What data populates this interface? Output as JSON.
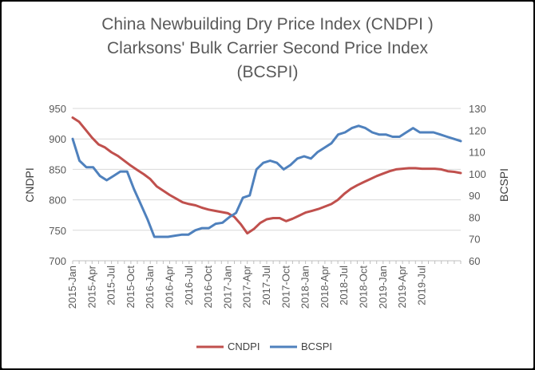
{
  "chart_data": {
    "type": "line",
    "title": [
      "China Newbuilding Dry Price Index (CNDPI )",
      "Clarksons' Bulk Carrier Second Price Index",
      "(BCSPI)"
    ],
    "ylabel_left": "CNDPI",
    "ylabel_right": "BCSPI",
    "ylim_left": [
      700,
      950
    ],
    "ylim_right": [
      60,
      130
    ],
    "yticks_left": [
      "700",
      "750",
      "800",
      "850",
      "900",
      "950"
    ],
    "yticks_right": [
      "60",
      "70",
      "80",
      "90",
      "100",
      "110",
      "120",
      "130"
    ],
    "xtick_labels": [
      "2015-Jan",
      "2015-Apr",
      "2015-Jul",
      "2015-Oct",
      "2016-Jan",
      "2016-Apr",
      "2016-Jul",
      "2016-Oct",
      "2017-Jan",
      "2017-Apr",
      "2017-Jul",
      "2017-Oct",
      "2018-Jan",
      "2018-Apr",
      "2018-Jul",
      "2018-Oct",
      "2019-Jan",
      "2019-Apr",
      "2019-Jul"
    ],
    "legend_position": "bottom",
    "series": [
      {
        "name": "CNDPI",
        "axis": "left",
        "color": "#c0504d",
        "values": [
          935,
          928,
          915,
          902,
          891,
          886,
          878,
          872,
          864,
          856,
          849,
          842,
          834,
          822,
          815,
          808,
          802,
          796,
          793,
          791,
          787,
          784,
          782,
          780,
          778,
          772,
          760,
          745,
          752,
          762,
          768,
          770,
          770,
          765,
          769,
          774,
          779,
          782,
          785,
          789,
          793,
          800,
          810,
          818,
          824,
          829,
          834,
          839,
          843,
          847,
          850,
          851,
          852,
          852,
          851,
          851,
          851,
          850,
          847,
          846,
          844
        ]
      },
      {
        "name": "BCSPI",
        "axis": "right",
        "color": "#4f81bd",
        "values": [
          116,
          106,
          103,
          103,
          99,
          97,
          99,
          101,
          101,
          93,
          86,
          79,
          71,
          71,
          71,
          71.5,
          72,
          72,
          74,
          75,
          75,
          77,
          77.5,
          80,
          82,
          89,
          90,
          102,
          105,
          106,
          105,
          102,
          104,
          107,
          108,
          107,
          110,
          112,
          114,
          118,
          119,
          121,
          122,
          121,
          119,
          118,
          118,
          117,
          117,
          119,
          121,
          119,
          119,
          119,
          118,
          117,
          116,
          115
        ]
      }
    ]
  }
}
